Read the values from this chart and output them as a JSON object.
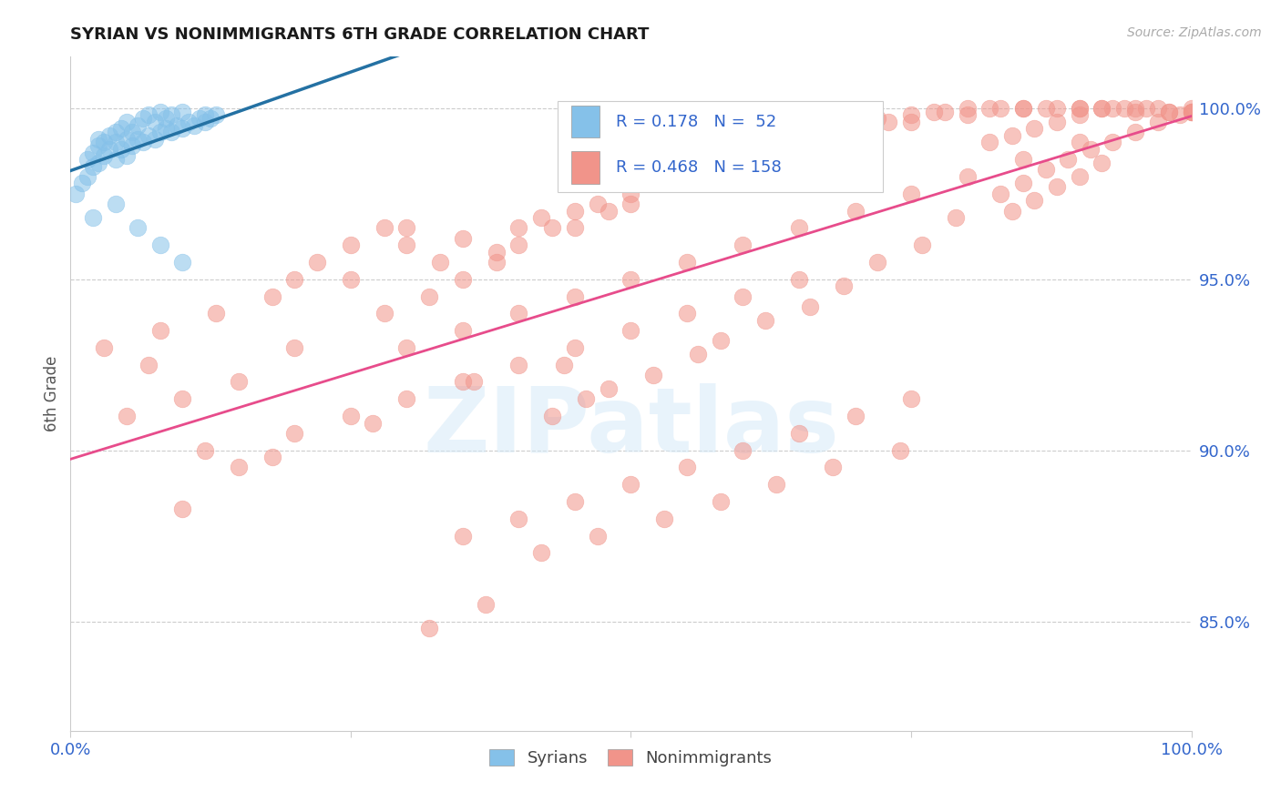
{
  "title": "SYRIAN VS NONIMMIGRANTS 6TH GRADE CORRELATION CHART",
  "source": "Source: ZipAtlas.com",
  "ylabel": "6th Grade",
  "legend_r_blue": "R = 0.178",
  "legend_n_blue": "N =  52",
  "legend_r_pink": "R = 0.468",
  "legend_n_pink": "N = 158",
  "syrians_color": "#85C1E9",
  "nonimmigrants_color": "#F1948A",
  "blue_line_color": "#2471A3",
  "pink_line_color": "#E74C8B",
  "background_color": "#FFFFFF",
  "title_color": "#1a1a1a",
  "axis_tick_color": "#3366CC",
  "grid_color": "#CCCCCC",
  "ytick_values": [
    0.85,
    0.9,
    0.95,
    1.0
  ],
  "xlim": [
    0.0,
    1.0
  ],
  "ylim": [
    0.818,
    1.015
  ],
  "syrians_x": [
    0.005,
    0.01,
    0.015,
    0.015,
    0.02,
    0.02,
    0.025,
    0.025,
    0.025,
    0.03,
    0.03,
    0.035,
    0.035,
    0.04,
    0.04,
    0.04,
    0.045,
    0.045,
    0.05,
    0.05,
    0.05,
    0.055,
    0.055,
    0.06,
    0.06,
    0.065,
    0.065,
    0.07,
    0.07,
    0.075,
    0.075,
    0.08,
    0.08,
    0.085,
    0.085,
    0.09,
    0.09,
    0.095,
    0.1,
    0.1,
    0.105,
    0.11,
    0.115,
    0.12,
    0.12,
    0.125,
    0.13,
    0.02,
    0.04,
    0.06,
    0.08,
    0.1
  ],
  "syrians_y": [
    0.975,
    0.978,
    0.98,
    0.985,
    0.983,
    0.987,
    0.984,
    0.989,
    0.991,
    0.986,
    0.99,
    0.988,
    0.992,
    0.985,
    0.99,
    0.993,
    0.988,
    0.994,
    0.986,
    0.991,
    0.996,
    0.989,
    0.993,
    0.991,
    0.995,
    0.99,
    0.997,
    0.992,
    0.998,
    0.991,
    0.996,
    0.993,
    0.999,
    0.994,
    0.997,
    0.993,
    0.998,
    0.995,
    0.994,
    0.999,
    0.996,
    0.995,
    0.997,
    0.996,
    0.998,
    0.997,
    0.998,
    0.968,
    0.972,
    0.965,
    0.96,
    0.955
  ],
  "nonimmigrants_x": [
    0.03,
    0.05,
    0.07,
    0.1,
    0.12,
    0.15,
    0.08,
    0.13,
    0.18,
    0.2,
    0.22,
    0.25,
    0.28,
    0.3,
    0.15,
    0.2,
    0.25,
    0.3,
    0.33,
    0.35,
    0.28,
    0.32,
    0.38,
    0.4,
    0.35,
    0.38,
    0.42,
    0.45,
    0.4,
    0.43,
    0.47,
    0.5,
    0.45,
    0.48,
    0.52,
    0.55,
    0.5,
    0.53,
    0.57,
    0.6,
    0.55,
    0.58,
    0.62,
    0.65,
    0.6,
    0.63,
    0.67,
    0.7,
    0.65,
    0.68,
    0.72,
    0.75,
    0.7,
    0.73,
    0.77,
    0.8,
    0.75,
    0.78,
    0.82,
    0.85,
    0.8,
    0.83,
    0.87,
    0.9,
    0.85,
    0.88,
    0.92,
    0.95,
    0.9,
    0.93,
    0.97,
    1.0,
    0.95,
    0.98,
    1.0,
    0.82,
    0.84,
    0.86,
    0.88,
    0.9,
    0.92,
    0.94,
    0.96,
    0.98,
    1.0,
    0.83,
    0.85,
    0.87,
    0.89,
    0.91,
    0.93,
    0.95,
    0.97,
    0.99,
    1.0,
    0.84,
    0.86,
    0.88,
    0.9,
    0.92,
    0.3,
    0.35,
    0.4,
    0.45,
    0.5,
    0.55,
    0.6,
    0.65,
    0.7,
    0.75,
    0.8,
    0.85,
    0.9,
    0.2,
    0.25,
    0.3,
    0.35,
    0.4,
    0.45,
    0.5,
    0.55,
    0.6,
    0.65,
    0.1,
    0.18,
    0.27,
    0.36,
    0.44,
    0.43,
    0.46,
    0.48,
    0.52,
    0.56,
    0.58,
    0.62,
    0.66,
    0.69,
    0.72,
    0.76,
    0.79,
    0.35,
    0.4,
    0.45,
    0.5,
    0.55,
    0.6,
    0.65,
    0.7,
    0.75,
    0.42,
    0.47,
    0.53,
    0.58,
    0.63,
    0.68,
    0.74,
    0.32,
    0.37
  ],
  "nonimmigrants_y": [
    0.93,
    0.91,
    0.925,
    0.915,
    0.9,
    0.895,
    0.935,
    0.94,
    0.945,
    0.95,
    0.955,
    0.96,
    0.965,
    0.965,
    0.92,
    0.93,
    0.95,
    0.96,
    0.955,
    0.962,
    0.94,
    0.945,
    0.955,
    0.965,
    0.95,
    0.958,
    0.968,
    0.97,
    0.96,
    0.965,
    0.972,
    0.975,
    0.965,
    0.97,
    0.978,
    0.98,
    0.972,
    0.978,
    0.982,
    0.985,
    0.978,
    0.982,
    0.988,
    0.99,
    0.984,
    0.988,
    0.992,
    0.995,
    0.988,
    0.993,
    0.997,
    0.998,
    0.993,
    0.996,
    0.999,
    1.0,
    0.996,
    0.999,
    1.0,
    1.0,
    0.998,
    1.0,
    1.0,
    1.0,
    1.0,
    1.0,
    1.0,
    1.0,
    1.0,
    1.0,
    1.0,
    1.0,
    0.999,
    0.999,
    0.999,
    0.99,
    0.992,
    0.994,
    0.996,
    0.998,
    1.0,
    1.0,
    1.0,
    0.999,
    0.999,
    0.975,
    0.978,
    0.982,
    0.985,
    0.988,
    0.99,
    0.993,
    0.996,
    0.998,
    0.999,
    0.97,
    0.973,
    0.977,
    0.98,
    0.984,
    0.93,
    0.935,
    0.94,
    0.945,
    0.95,
    0.955,
    0.96,
    0.965,
    0.97,
    0.975,
    0.98,
    0.985,
    0.99,
    0.905,
    0.91,
    0.915,
    0.92,
    0.925,
    0.93,
    0.935,
    0.94,
    0.945,
    0.95,
    0.883,
    0.898,
    0.908,
    0.92,
    0.925,
    0.91,
    0.915,
    0.918,
    0.922,
    0.928,
    0.932,
    0.938,
    0.942,
    0.948,
    0.955,
    0.96,
    0.968,
    0.875,
    0.88,
    0.885,
    0.89,
    0.895,
    0.9,
    0.905,
    0.91,
    0.915,
    0.87,
    0.875,
    0.88,
    0.885,
    0.89,
    0.895,
    0.9,
    0.848,
    0.855
  ]
}
